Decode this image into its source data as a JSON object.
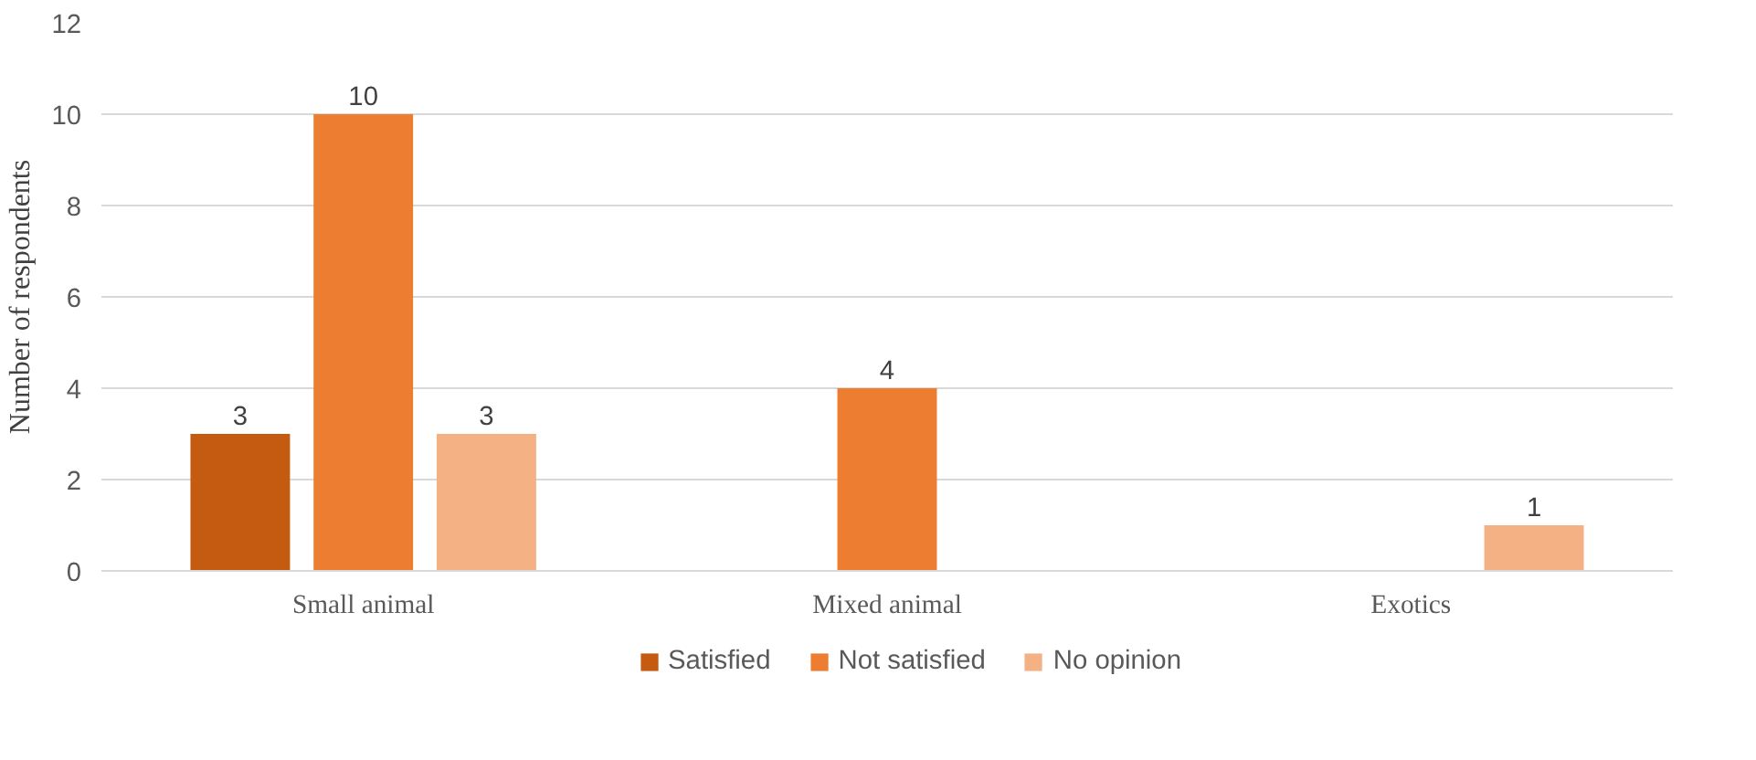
{
  "chart_data": {
    "type": "bar",
    "ylabel": "Number of respondents",
    "categories": [
      "Small animal",
      "Mixed animal",
      "Exotics"
    ],
    "series": [
      {
        "name": "Satisfied",
        "color": "#c55a11",
        "values": [
          3,
          null,
          null
        ]
      },
      {
        "name": "Not satisfied",
        "color": "#ed7d31",
        "values": [
          10,
          4,
          null
        ]
      },
      {
        "name": "No opinion",
        "color": "#f4b183",
        "values": [
          3,
          null,
          1
        ]
      }
    ],
    "ylim": [
      0,
      12
    ],
    "yticks": [
      0,
      2,
      4,
      6,
      8,
      10,
      12
    ],
    "grid": "y",
    "legend": "bottom",
    "data_labels": true
  }
}
